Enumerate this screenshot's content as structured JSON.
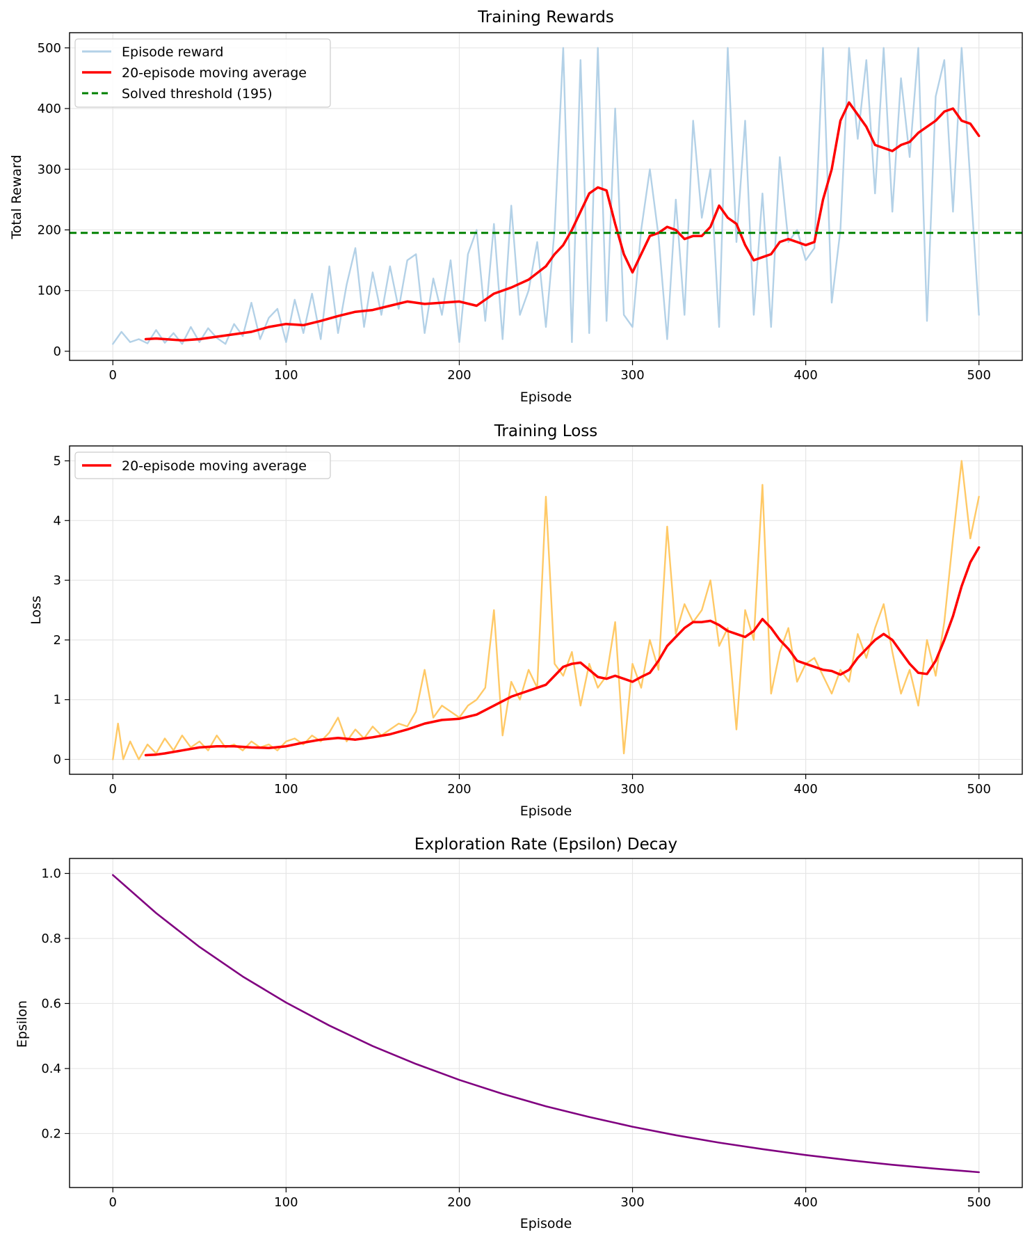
{
  "figure": {
    "background": "#ffffff"
  },
  "chart_data": [
    {
      "type": "line",
      "title": "Training Rewards",
      "xlabel": "Episode",
      "ylabel": "Total Reward",
      "xlim": [
        -25,
        525
      ],
      "ylim": [
        -15,
        525
      ],
      "xticks": [
        0,
        100,
        200,
        300,
        400,
        500
      ],
      "yticks": [
        0,
        100,
        200,
        300,
        400,
        500
      ],
      "grid": true,
      "legend": {
        "position": "top-left",
        "entries": [
          "Episode reward",
          "20-episode moving average",
          "Solved threshold (195)"
        ]
      },
      "series": [
        {
          "name": "Episode reward",
          "color": "#b3d1e7",
          "x": [
            0,
            5,
            10,
            15,
            20,
            25,
            30,
            35,
            40,
            45,
            50,
            55,
            60,
            65,
            70,
            75,
            80,
            85,
            90,
            95,
            100,
            105,
            110,
            115,
            120,
            125,
            130,
            135,
            140,
            145,
            150,
            155,
            160,
            165,
            170,
            175,
            180,
            185,
            190,
            195,
            200,
            205,
            210,
            215,
            220,
            225,
            230,
            235,
            240,
            245,
            250,
            255,
            260,
            265,
            270,
            275,
            280,
            285,
            290,
            295,
            300,
            305,
            310,
            315,
            320,
            325,
            330,
            335,
            340,
            345,
            350,
            355,
            360,
            365,
            370,
            375,
            380,
            385,
            390,
            395,
            400,
            405,
            410,
            415,
            420,
            425,
            430,
            435,
            440,
            445,
            450,
            455,
            460,
            465,
            470,
            475,
            480,
            485,
            490,
            495,
            500
          ],
          "values": [
            12,
            32,
            15,
            20,
            13,
            35,
            14,
            30,
            12,
            40,
            15,
            38,
            22,
            12,
            45,
            25,
            80,
            20,
            55,
            70,
            15,
            85,
            30,
            95,
            20,
            140,
            30,
            110,
            170,
            40,
            130,
            60,
            140,
            70,
            150,
            160,
            30,
            120,
            60,
            150,
            15,
            160,
            200,
            50,
            210,
            20,
            240,
            60,
            100,
            180,
            40,
            200,
            500,
            15,
            480,
            30,
            500,
            50,
            400,
            60,
            40,
            200,
            300,
            190,
            20,
            250,
            60,
            380,
            220,
            300,
            40,
            500,
            180,
            380,
            60,
            260,
            40,
            320,
            180,
            200,
            150,
            170,
            500,
            80,
            200,
            500,
            350,
            480,
            260,
            500,
            230,
            450,
            320,
            500,
            50,
            420,
            480,
            230,
            500,
            280,
            60
          ]
        },
        {
          "name": "20-episode moving average",
          "color": "#ff0000",
          "x": [
            19,
            25,
            30,
            40,
            50,
            60,
            70,
            80,
            90,
            100,
            110,
            120,
            130,
            140,
            150,
            160,
            170,
            180,
            190,
            200,
            210,
            220,
            230,
            240,
            250,
            255,
            260,
            265,
            270,
            275,
            280,
            285,
            290,
            295,
            300,
            305,
            310,
            315,
            320,
            325,
            330,
            335,
            340,
            345,
            350,
            355,
            360,
            365,
            370,
            375,
            380,
            385,
            390,
            395,
            400,
            405,
            410,
            415,
            420,
            425,
            430,
            435,
            440,
            445,
            450,
            455,
            460,
            465,
            470,
            475,
            480,
            485,
            490,
            495,
            500
          ],
          "values": [
            20,
            21,
            20,
            18,
            20,
            24,
            28,
            32,
            40,
            45,
            43,
            50,
            58,
            65,
            68,
            75,
            82,
            78,
            80,
            82,
            75,
            95,
            105,
            118,
            140,
            160,
            175,
            200,
            230,
            260,
            270,
            265,
            210,
            160,
            130,
            160,
            190,
            195,
            205,
            200,
            185,
            190,
            190,
            205,
            240,
            220,
            210,
            175,
            150,
            155,
            160,
            180,
            185,
            180,
            175,
            180,
            250,
            300,
            380,
            410,
            390,
            370,
            340,
            335,
            330,
            340,
            345,
            360,
            370,
            380,
            395,
            400,
            380,
            375,
            355
          ]
        },
        {
          "name": "Solved threshold (195)",
          "color": "#008000",
          "dashed": true,
          "x": [
            -25,
            525
          ],
          "values": [
            195,
            195
          ]
        }
      ]
    },
    {
      "type": "line",
      "title": "Training Loss",
      "xlabel": "Episode",
      "ylabel": "Loss",
      "xlim": [
        -25,
        525
      ],
      "ylim": [
        -0.25,
        5.25
      ],
      "xticks": [
        0,
        100,
        200,
        300,
        400,
        500
      ],
      "yticks": [
        0,
        1,
        2,
        3,
        4,
        5
      ],
      "grid": true,
      "legend": {
        "position": "top-left",
        "entries": [
          "20-episode moving average"
        ]
      },
      "series": [
        {
          "name": "Loss",
          "color": "#ffc966",
          "x": [
            0,
            3,
            6,
            10,
            15,
            20,
            25,
            30,
            35,
            40,
            45,
            50,
            55,
            60,
            65,
            70,
            75,
            80,
            85,
            90,
            95,
            100,
            105,
            110,
            115,
            120,
            125,
            130,
            135,
            140,
            145,
            150,
            155,
            160,
            165,
            170,
            175,
            180,
            185,
            190,
            195,
            200,
            205,
            210,
            215,
            220,
            225,
            230,
            235,
            240,
            245,
            250,
            255,
            260,
            265,
            270,
            275,
            280,
            285,
            290,
            295,
            300,
            305,
            310,
            315,
            320,
            325,
            330,
            335,
            340,
            345,
            350,
            355,
            360,
            365,
            370,
            375,
            380,
            385,
            390,
            395,
            400,
            405,
            410,
            415,
            420,
            425,
            430,
            435,
            440,
            445,
            450,
            455,
            460,
            465,
            470,
            475,
            480,
            485,
            490,
            495,
            500
          ],
          "values": [
            0,
            0.6,
            0,
            0.3,
            0,
            0.25,
            0.1,
            0.35,
            0.15,
            0.4,
            0.2,
            0.3,
            0.15,
            0.4,
            0.2,
            0.25,
            0.15,
            0.3,
            0.2,
            0.25,
            0.15,
            0.3,
            0.35,
            0.25,
            0.4,
            0.3,
            0.45,
            0.7,
            0.3,
            0.5,
            0.35,
            0.55,
            0.4,
            0.5,
            0.6,
            0.55,
            0.8,
            1.5,
            0.7,
            0.9,
            0.8,
            0.7,
            0.9,
            1.0,
            1.2,
            2.5,
            0.4,
            1.3,
            1.0,
            1.5,
            1.2,
            4.4,
            1.6,
            1.4,
            1.8,
            0.9,
            1.6,
            1.2,
            1.4,
            2.3,
            0.1,
            1.6,
            1.2,
            2.0,
            1.5,
            3.9,
            2.1,
            2.6,
            2.3,
            2.5,
            3.0,
            1.9,
            2.2,
            0.5,
            2.5,
            2.0,
            4.6,
            1.1,
            1.8,
            2.2,
            1.3,
            1.6,
            1.7,
            1.4,
            1.1,
            1.5,
            1.3,
            2.1,
            1.7,
            2.2,
            2.6,
            1.8,
            1.1,
            1.5,
            0.9,
            2.0,
            1.4,
            2.3,
            3.7,
            5.0,
            3.7,
            4.4
          ]
        },
        {
          "name": "20-episode moving average",
          "color": "#ff0000",
          "x": [
            19,
            25,
            30,
            40,
            50,
            60,
            70,
            80,
            90,
            100,
            110,
            120,
            130,
            140,
            150,
            160,
            170,
            180,
            190,
            200,
            210,
            220,
            230,
            240,
            250,
            255,
            260,
            265,
            270,
            275,
            280,
            285,
            290,
            295,
            300,
            305,
            310,
            315,
            320,
            325,
            330,
            335,
            340,
            345,
            350,
            355,
            360,
            365,
            370,
            375,
            380,
            385,
            390,
            395,
            400,
            405,
            410,
            415,
            420,
            425,
            430,
            435,
            440,
            445,
            450,
            455,
            460,
            465,
            470,
            475,
            480,
            485,
            490,
            495,
            500
          ],
          "values": [
            0.07,
            0.08,
            0.1,
            0.15,
            0.2,
            0.22,
            0.22,
            0.2,
            0.19,
            0.22,
            0.28,
            0.33,
            0.36,
            0.33,
            0.37,
            0.42,
            0.5,
            0.6,
            0.66,
            0.68,
            0.75,
            0.9,
            1.05,
            1.15,
            1.25,
            1.4,
            1.55,
            1.6,
            1.62,
            1.5,
            1.38,
            1.35,
            1.4,
            1.35,
            1.3,
            1.38,
            1.45,
            1.65,
            1.9,
            2.05,
            2.2,
            2.3,
            2.3,
            2.32,
            2.25,
            2.15,
            2.1,
            2.05,
            2.15,
            2.35,
            2.2,
            2.0,
            1.85,
            1.65,
            1.6,
            1.55,
            1.5,
            1.48,
            1.42,
            1.5,
            1.7,
            1.85,
            2.0,
            2.1,
            2.0,
            1.8,
            1.6,
            1.45,
            1.43,
            1.65,
            2.0,
            2.4,
            2.9,
            3.3,
            3.55
          ]
        }
      ]
    },
    {
      "type": "line",
      "title": "Exploration Rate (Epsilon) Decay",
      "xlabel": "Episode",
      "ylabel": "Epsilon",
      "xlim": [
        -25,
        525
      ],
      "ylim": [
        0.034,
        1.046
      ],
      "xticks": [
        0,
        100,
        200,
        300,
        400,
        500
      ],
      "yticks": [
        0.2,
        0.4,
        0.6,
        0.8,
        1.0
      ],
      "grid": true,
      "series": [
        {
          "name": "Epsilon",
          "color": "#800080",
          "x": [
            0,
            25,
            50,
            75,
            100,
            125,
            150,
            175,
            200,
            225,
            250,
            275,
            300,
            325,
            350,
            375,
            400,
            425,
            450,
            475,
            500
          ],
          "values": [
            0.995,
            0.878,
            0.774,
            0.683,
            0.603,
            0.532,
            0.469,
            0.414,
            0.365,
            0.322,
            0.284,
            0.251,
            0.221,
            0.195,
            0.172,
            0.152,
            0.134,
            0.118,
            0.104,
            0.092,
            0.081
          ]
        }
      ]
    }
  ]
}
